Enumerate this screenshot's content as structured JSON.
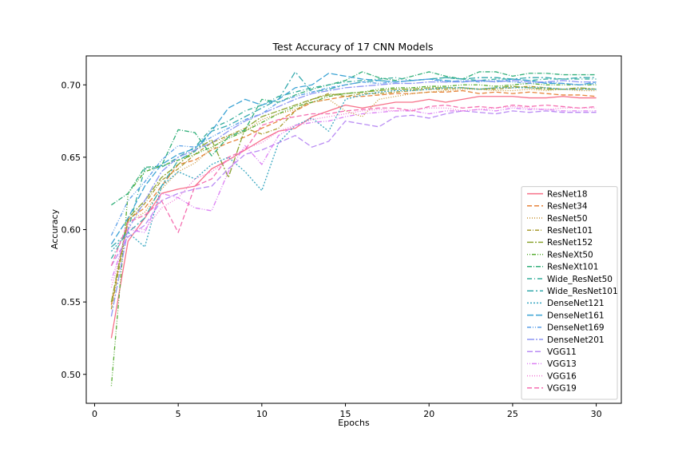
{
  "chart_data": {
    "type": "line",
    "title": "Test Accuracy of 17 CNN Models",
    "xlabel": "Epochs",
    "ylabel": "Accuracy",
    "xlim": [
      -0.5,
      31.5
    ],
    "ylim": [
      0.48,
      0.72
    ],
    "xticks": [
      0,
      5,
      10,
      15,
      20,
      25,
      30
    ],
    "yticks": [
      0.5,
      0.55,
      0.6,
      0.65,
      0.7
    ],
    "grid": false,
    "legend_position": "lower-right",
    "x": [
      1,
      2,
      3,
      4,
      5,
      6,
      7,
      8,
      9,
      10,
      11,
      12,
      13,
      14,
      15,
      16,
      17,
      18,
      19,
      20,
      21,
      22,
      23,
      24,
      25,
      26,
      27,
      28,
      29,
      30
    ],
    "series": [
      {
        "name": "ResNet18",
        "color": "#f77189",
        "dash": "",
        "values": [
          0.525,
          0.592,
          0.608,
          0.625,
          0.628,
          0.63,
          0.642,
          0.648,
          0.655,
          0.662,
          0.668,
          0.67,
          0.678,
          0.682,
          0.686,
          0.684,
          0.686,
          0.688,
          0.688,
          0.69,
          0.688,
          0.69,
          0.692,
          0.692,
          0.692,
          0.691,
          0.691,
          0.692,
          0.691,
          0.691
        ]
      },
      {
        "name": "ResNet34",
        "color": "#e7843b",
        "dash": "6,3",
        "values": [
          0.548,
          0.607,
          0.615,
          0.63,
          0.645,
          0.648,
          0.655,
          0.66,
          0.664,
          0.67,
          0.675,
          0.682,
          0.688,
          0.69,
          0.692,
          0.692,
          0.693,
          0.694,
          0.694,
          0.695,
          0.695,
          0.696,
          0.694,
          0.695,
          0.694,
          0.695,
          0.694,
          0.693,
          0.693,
          0.692
        ]
      },
      {
        "name": "ResNet50",
        "color": "#c89431",
        "dash": "1,2",
        "values": [
          0.55,
          0.605,
          0.612,
          0.628,
          0.64,
          0.646,
          0.656,
          0.665,
          0.668,
          0.676,
          0.68,
          0.683,
          0.688,
          0.69,
          0.682,
          0.678,
          0.69,
          0.692,
          0.694,
          0.695,
          0.696,
          0.697,
          0.697,
          0.696,
          0.696,
          0.697,
          0.696,
          0.697,
          0.696,
          0.696
        ]
      },
      {
        "name": "ResNet101",
        "color": "#aa9c31",
        "dash": "5,2,1,2",
        "values": [
          0.545,
          0.606,
          0.618,
          0.634,
          0.642,
          0.652,
          0.66,
          0.665,
          0.67,
          0.666,
          0.67,
          0.682,
          0.69,
          0.694,
          0.692,
          0.694,
          0.694,
          0.695,
          0.696,
          0.697,
          0.697,
          0.698,
          0.697,
          0.697,
          0.698,
          0.699,
          0.698,
          0.697,
          0.697,
          0.697
        ]
      },
      {
        "name": "ResNet152",
        "color": "#8ba431",
        "dash": "8,2,2,2",
        "values": [
          0.55,
          0.608,
          0.62,
          0.636,
          0.645,
          0.655,
          0.662,
          0.636,
          0.67,
          0.678,
          0.682,
          0.686,
          0.69,
          0.693,
          0.694,
          0.695,
          0.696,
          0.697,
          0.697,
          0.698,
          0.698,
          0.698,
          0.697,
          0.698,
          0.699,
          0.698,
          0.697,
          0.697,
          0.698,
          0.697
        ]
      },
      {
        "name": "ResNeXt50",
        "color": "#56ad31",
        "dash": "1,2,1,2,5,2",
        "values": [
          0.492,
          0.625,
          0.64,
          0.644,
          0.648,
          0.652,
          0.657,
          0.663,
          0.668,
          0.674,
          0.68,
          0.685,
          0.688,
          0.692,
          0.694,
          0.695,
          0.697,
          0.698,
          0.698,
          0.699,
          0.699,
          0.7,
          0.7,
          0.699,
          0.7,
          0.701,
          0.7,
          0.7,
          0.7,
          0.7
        ]
      },
      {
        "name": "ResNeXt101",
        "color": "#33b07a",
        "dash": "6,2,1,2",
        "values": [
          0.617,
          0.625,
          0.643,
          0.644,
          0.669,
          0.667,
          0.651,
          0.664,
          0.669,
          0.69,
          0.688,
          0.693,
          0.697,
          0.7,
          0.703,
          0.709,
          0.705,
          0.703,
          0.706,
          0.709,
          0.706,
          0.704,
          0.709,
          0.709,
          0.706,
          0.708,
          0.708,
          0.707,
          0.707,
          0.707
        ]
      },
      {
        "name": "Wide_ResNet50",
        "color": "#35ad9c",
        "dash": "6,3,1,3",
        "values": [
          0.58,
          0.6,
          0.642,
          0.643,
          0.65,
          0.657,
          0.67,
          0.675,
          0.682,
          0.686,
          0.692,
          0.695,
          0.698,
          0.7,
          0.702,
          0.703,
          0.704,
          0.705,
          0.703,
          0.704,
          0.705,
          0.704,
          0.703,
          0.704,
          0.704,
          0.703,
          0.704,
          0.704,
          0.704,
          0.704
        ]
      },
      {
        "name": "Wide_ResNet101",
        "color": "#36aaae",
        "dash": "8,3,2,3",
        "values": [
          0.588,
          0.598,
          0.608,
          0.63,
          0.648,
          0.654,
          0.668,
          0.672,
          0.678,
          0.684,
          0.69,
          0.709,
          0.695,
          0.697,
          0.7,
          0.702,
          0.703,
          0.702,
          0.703,
          0.704,
          0.705,
          0.704,
          0.705,
          0.705,
          0.704,
          0.705,
          0.705,
          0.704,
          0.705,
          0.705
        ]
      },
      {
        "name": "DenseNet121",
        "color": "#38a7c1",
        "dash": "2,2",
        "values": [
          0.585,
          0.598,
          0.588,
          0.63,
          0.64,
          0.635,
          0.645,
          0.65,
          0.64,
          0.627,
          0.66,
          0.672,
          0.677,
          0.668,
          0.69,
          0.693,
          0.695,
          0.696,
          0.696,
          0.697,
          0.698,
          0.698,
          0.697,
          0.698,
          0.698,
          0.698,
          0.698,
          0.697,
          0.697,
          0.697
        ]
      },
      {
        "name": "DenseNet161",
        "color": "#3ba3d4",
        "dash": "8,3",
        "values": [
          0.59,
          0.608,
          0.63,
          0.645,
          0.652,
          0.656,
          0.668,
          0.684,
          0.69,
          0.686,
          0.69,
          0.698,
          0.7,
          0.708,
          0.706,
          0.704,
          0.703,
          0.702,
          0.703,
          0.704,
          0.703,
          0.702,
          0.703,
          0.702,
          0.704,
          0.703,
          0.701,
          0.701,
          0.7,
          0.702
        ]
      },
      {
        "name": "DenseNet169",
        "color": "#5a9fe8",
        "dash": "5,2,1,2,1,2",
        "values": [
          0.596,
          0.62,
          0.633,
          0.648,
          0.658,
          0.657,
          0.664,
          0.67,
          0.676,
          0.68,
          0.688,
          0.692,
          0.695,
          0.698,
          0.7,
          0.702,
          0.701,
          0.702,
          0.703,
          0.704,
          0.702,
          0.703,
          0.702,
          0.703,
          0.702,
          0.701,
          0.702,
          0.701,
          0.7,
          0.701
        ]
      },
      {
        "name": "DenseNet201",
        "color": "#8e96f4",
        "dash": "9,2,2,2",
        "values": [
          0.54,
          0.6,
          0.62,
          0.64,
          0.65,
          0.655,
          0.66,
          0.668,
          0.675,
          0.68,
          0.685,
          0.69,
          0.694,
          0.696,
          0.698,
          0.699,
          0.7,
          0.701,
          0.701,
          0.702,
          0.702,
          0.702,
          0.703,
          0.702,
          0.703,
          0.702,
          0.702,
          0.703,
          0.702,
          0.702
        ]
      },
      {
        "name": "VGG11",
        "color": "#b98bf4",
        "dash": "7,3",
        "values": [
          0.575,
          0.595,
          0.603,
          0.62,
          0.625,
          0.628,
          0.63,
          0.642,
          0.652,
          0.655,
          0.66,
          0.665,
          0.657,
          0.661,
          0.675,
          0.673,
          0.671,
          0.678,
          0.679,
          0.677,
          0.68,
          0.682,
          0.681,
          0.68,
          0.682,
          0.681,
          0.682,
          0.681,
          0.681,
          0.681
        ]
      },
      {
        "name": "VGG13",
        "color": "#dc80f4",
        "dash": "1,2,1,2,6,2",
        "values": [
          0.565,
          0.6,
          0.598,
          0.625,
          0.622,
          0.615,
          0.613,
          0.64,
          0.658,
          0.645,
          0.665,
          0.672,
          0.674,
          0.675,
          0.678,
          0.68,
          0.681,
          0.682,
          0.682,
          0.68,
          0.682,
          0.682,
          0.683,
          0.682,
          0.684,
          0.683,
          0.683,
          0.682,
          0.682,
          0.682
        ]
      },
      {
        "name": "VGG16",
        "color": "#f17ad6",
        "dash": "1,2",
        "values": [
          0.56,
          0.602,
          0.6,
          0.615,
          0.622,
          0.635,
          0.64,
          0.648,
          0.656,
          0.66,
          0.668,
          0.672,
          0.676,
          0.678,
          0.68,
          0.682,
          0.683,
          0.682,
          0.683,
          0.684,
          0.684,
          0.682,
          0.683,
          0.684,
          0.685,
          0.684,
          0.683,
          0.684,
          0.684,
          0.684
        ]
      },
      {
        "name": "VGG19",
        "color": "#f56fb1",
        "dash": "6,3",
        "values": [
          0.575,
          0.605,
          0.61,
          0.62,
          0.598,
          0.63,
          0.635,
          0.65,
          0.655,
          0.672,
          0.676,
          0.678,
          0.68,
          0.68,
          0.682,
          0.683,
          0.684,
          0.684,
          0.682,
          0.685,
          0.686,
          0.684,
          0.685,
          0.684,
          0.686,
          0.685,
          0.686,
          0.685,
          0.684,
          0.685
        ]
      }
    ]
  }
}
